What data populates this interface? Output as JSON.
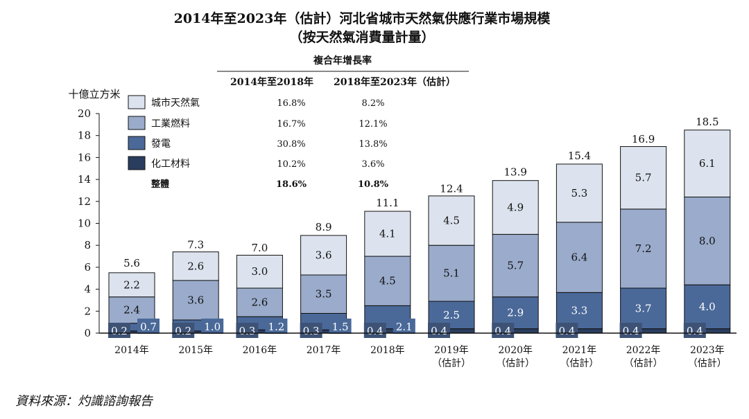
{
  "chart_data": {
    "type": "bar",
    "stacked": true,
    "title": "2014年至2023年（估計）河北省城市天然氣供應行業市場規模",
    "subtitle": "（按天然氣消費量計量）",
    "ylabel": "十億立方米",
    "ylim": [
      0,
      20
    ],
    "yticks": [
      "0",
      "2",
      "4",
      "6",
      "8",
      "10",
      "12",
      "14",
      "16",
      "18",
      "20"
    ],
    "categories": [
      {
        "year": "2014年",
        "note": ""
      },
      {
        "year": "2015年",
        "note": ""
      },
      {
        "year": "2016年",
        "note": ""
      },
      {
        "year": "2017年",
        "note": ""
      },
      {
        "year": "2018年",
        "note": ""
      },
      {
        "year": "2019年",
        "note": "（估計）"
      },
      {
        "year": "2020年",
        "note": "（估計）"
      },
      {
        "year": "2021年",
        "note": "（估計）"
      },
      {
        "year": "2022年",
        "note": "（估計）"
      },
      {
        "year": "2023年",
        "note": "（估計）"
      }
    ],
    "series": [
      {
        "name": "化工材料",
        "color": "#2a3d5e",
        "values": [
          0.2,
          0.2,
          0.3,
          0.3,
          0.4,
          0.4,
          0.4,
          0.4,
          0.4,
          0.4
        ],
        "labels": [
          "0.2",
          "0.2",
          "0.3",
          "0.3",
          "0.4",
          "0.4",
          "0.4",
          "0.4",
          "0.4",
          "0.4"
        ]
      },
      {
        "name": "發電",
        "color": "#4a6999",
        "values": [
          0.7,
          1.0,
          1.2,
          1.5,
          2.1,
          2.5,
          2.9,
          3.3,
          3.7,
          4.0
        ],
        "labels": [
          "0.7",
          "1.0",
          "1.2",
          "1.5",
          "2.1",
          "2.5",
          "2.9",
          "3.3",
          "3.7",
          "4.0"
        ]
      },
      {
        "name": "工業燃料",
        "color": "#9aabcb",
        "values": [
          2.4,
          3.6,
          2.6,
          3.5,
          4.5,
          5.1,
          5.7,
          6.4,
          7.2,
          8.0
        ],
        "labels": [
          "2.4",
          "3.6",
          "2.6",
          "3.5",
          "4.5",
          "5.1",
          "5.7",
          "6.4",
          "7.2",
          "8.0"
        ]
      },
      {
        "name": "城市天然氣",
        "color": "#dde3ee",
        "values": [
          2.2,
          2.6,
          3.0,
          3.6,
          4.1,
          4.5,
          4.9,
          5.3,
          5.7,
          6.1
        ],
        "labels": [
          "2.2",
          "2.6",
          "3.0",
          "3.6",
          "4.1",
          "4.5",
          "4.9",
          "5.3",
          "5.7",
          "6.1"
        ]
      }
    ],
    "totals": [
      5.6,
      7.3,
      7.0,
      8.9,
      11.1,
      12.4,
      13.9,
      15.4,
      16.9,
      18.5
    ],
    "total_labels": [
      "5.6",
      "7.3",
      "7.0",
      "8.9",
      "11.1",
      "12.4",
      "13.9",
      "15.4",
      "16.9",
      "18.5"
    ],
    "cagr_table": {
      "header": "複合年增長率",
      "columns": [
        "2014年至2018年",
        "2018年至2023年（估計）"
      ],
      "rows": [
        {
          "name": "城市天然氣",
          "values": [
            "16.8%",
            "8.2%"
          ],
          "color": "#dde3ee"
        },
        {
          "name": "工業燃料",
          "values": [
            "16.7%",
            "12.1%"
          ],
          "color": "#9aabcb"
        },
        {
          "name": "發電",
          "values": [
            "30.8%",
            "13.8%"
          ],
          "color": "#4a6999"
        },
        {
          "name": "化工材料",
          "values": [
            "10.2%",
            "3.6%"
          ],
          "color": "#2a3d5e"
        },
        {
          "name": "整體",
          "values": [
            "18.6%",
            "10.8%"
          ],
          "bold": true
        }
      ]
    }
  },
  "source": "資料來源：灼識諮詢報告"
}
